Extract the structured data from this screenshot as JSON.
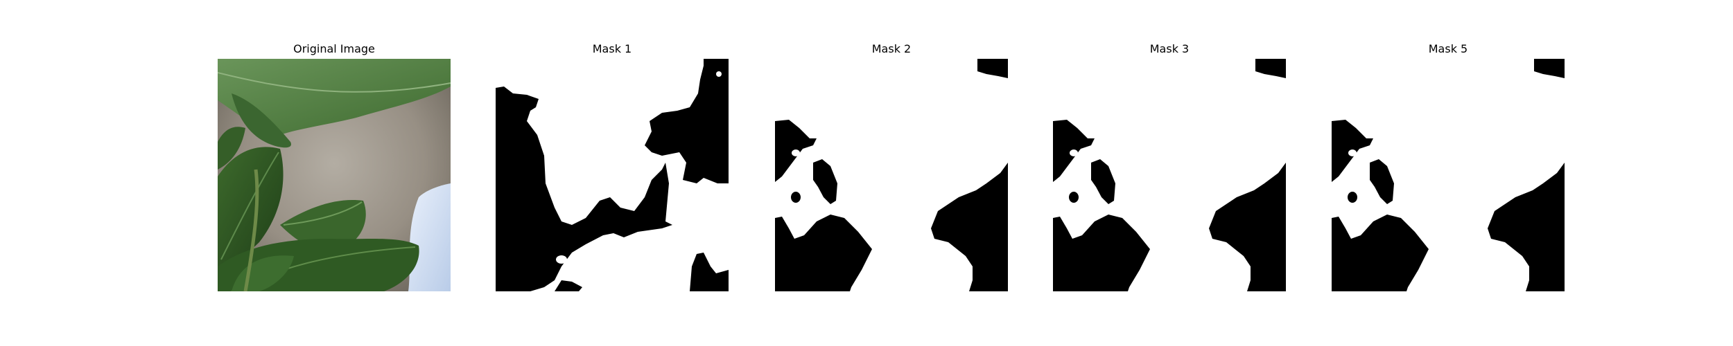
{
  "figure": {
    "panels": [
      {
        "title": "Original Image"
      },
      {
        "title": "Mask 1"
      },
      {
        "title": "Mask 2"
      },
      {
        "title": "Mask 3"
      },
      {
        "title": "Mask 5"
      }
    ]
  },
  "colors": {
    "mask_foreground": "#ffffff",
    "mask_background": "#000000",
    "leaf_dark": "#2f5a23",
    "leaf_mid": "#4f7f3c",
    "leaf_light": "#6f9a5c",
    "ground": "#9a9388",
    "container": "#c9d9f2"
  }
}
